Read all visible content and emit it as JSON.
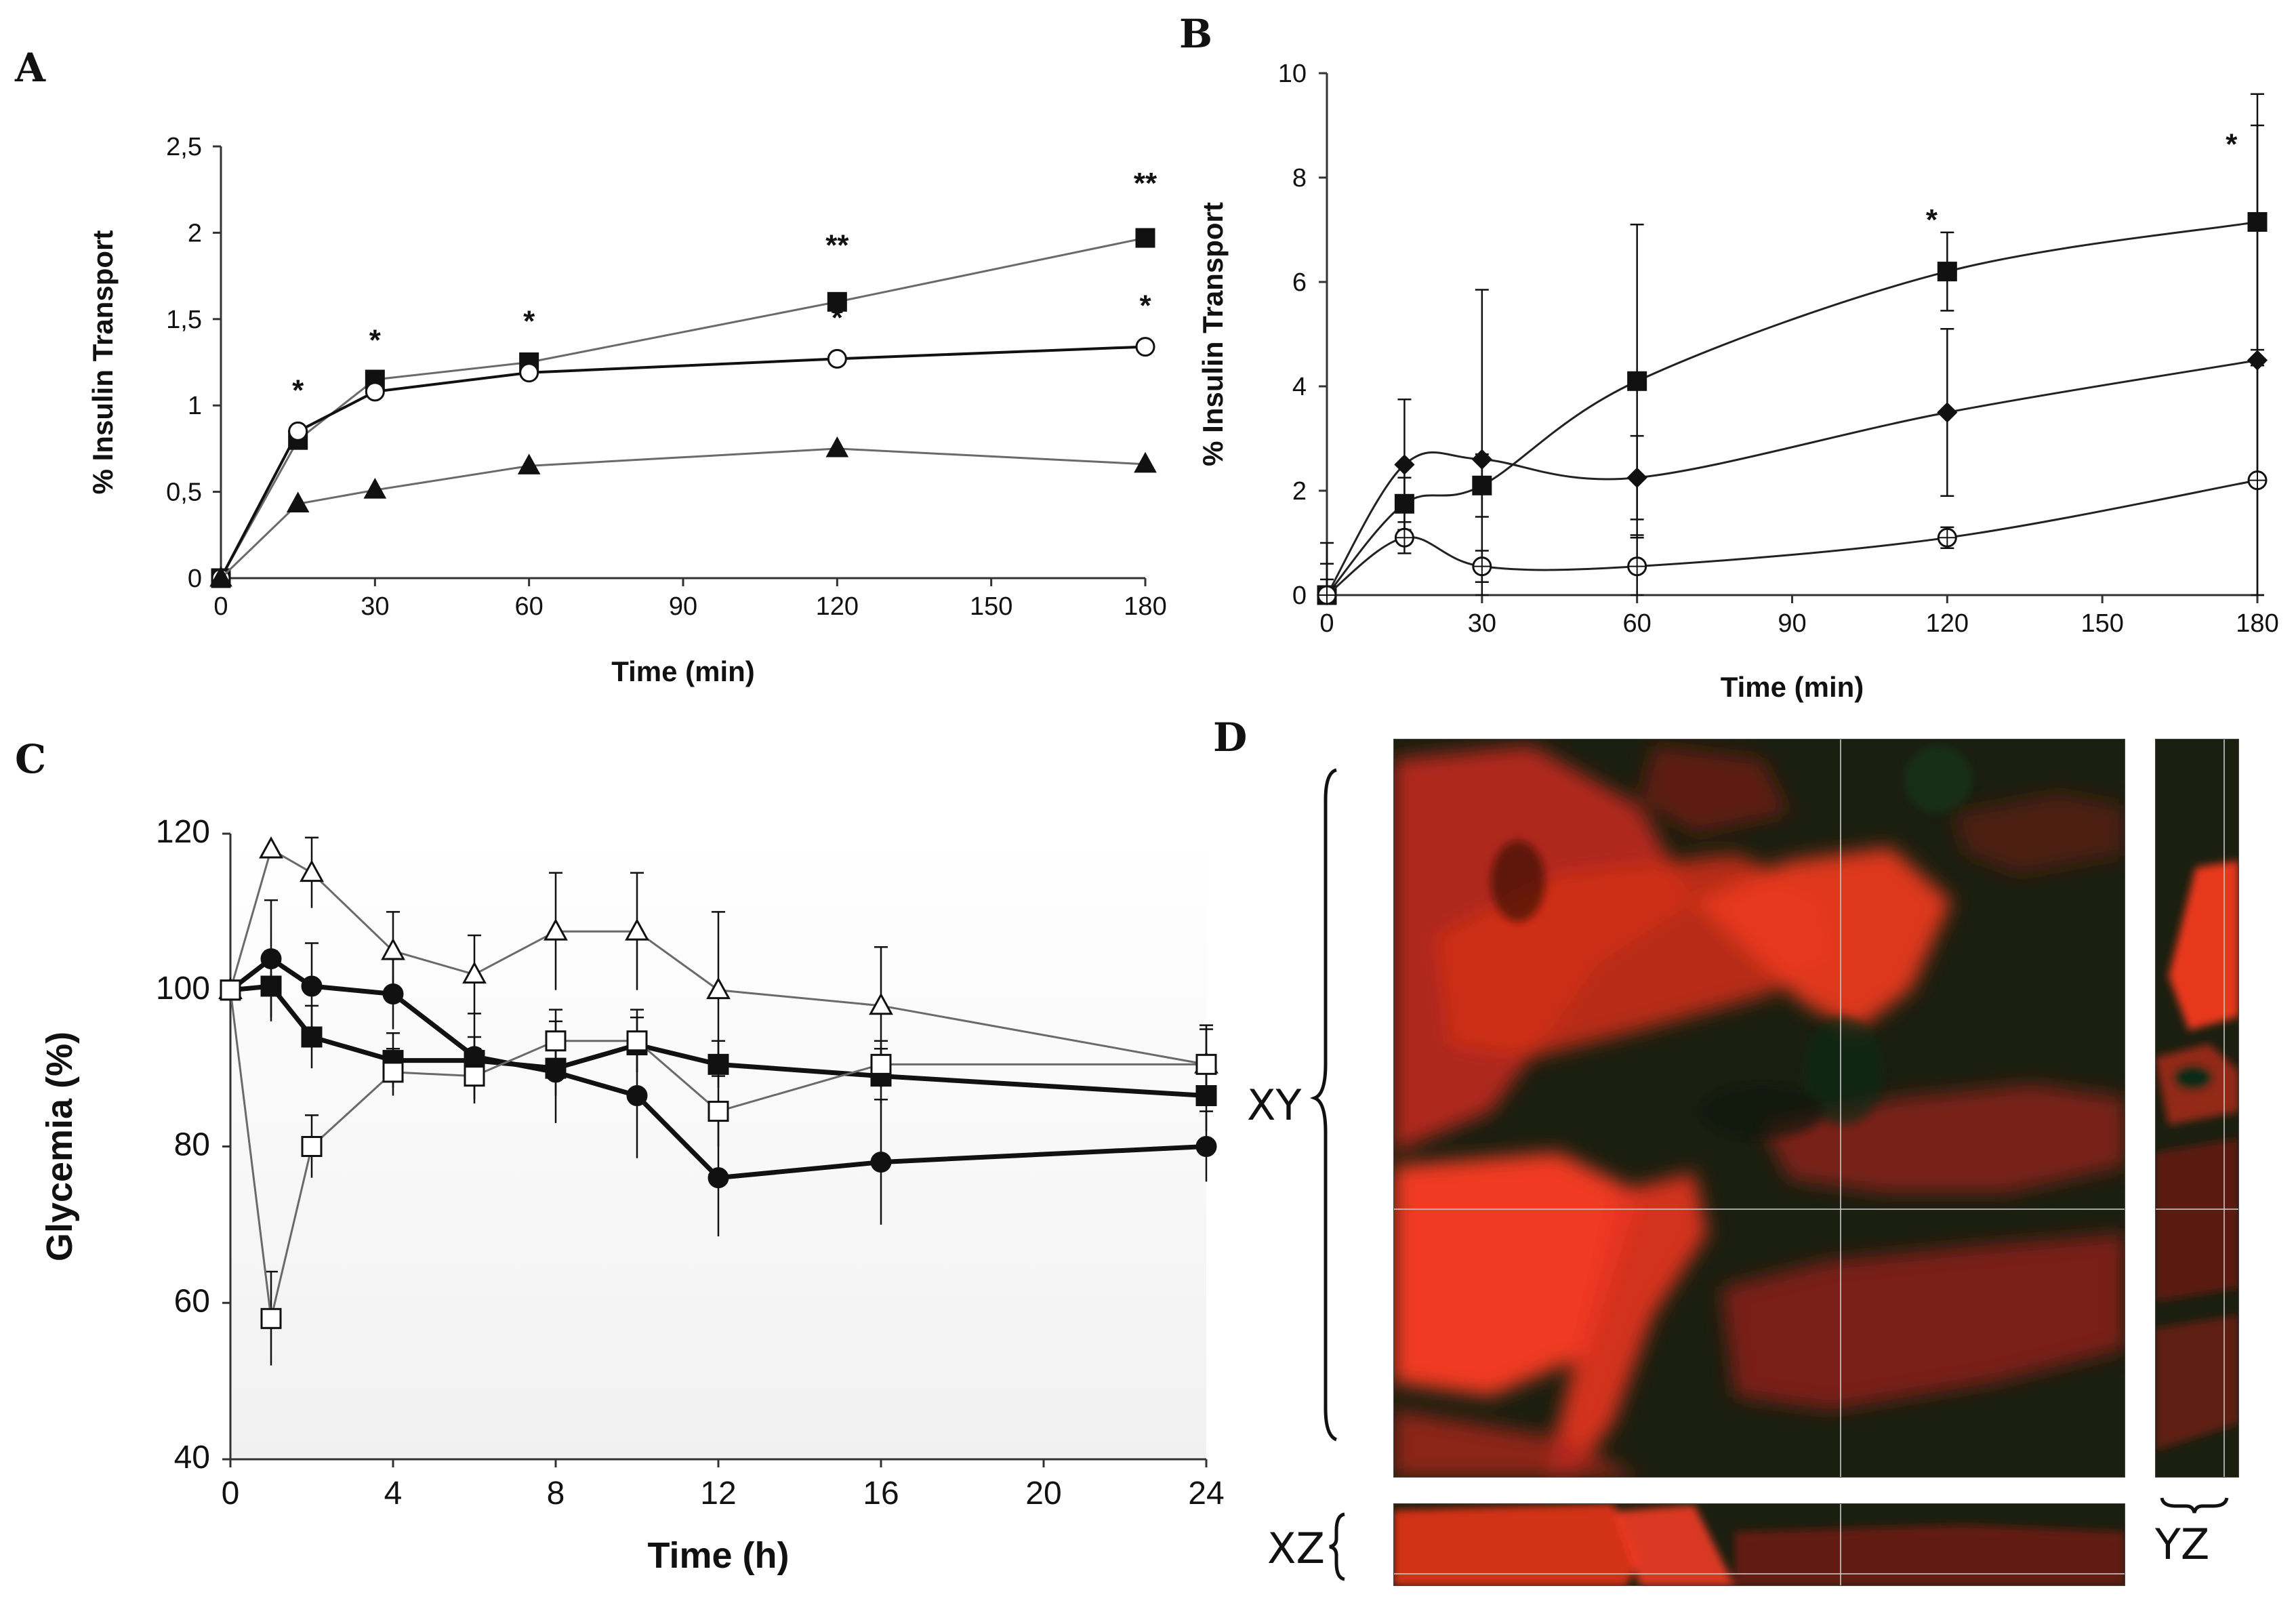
{
  "panels": {
    "a": "A",
    "b": "B",
    "c": "C",
    "d": "D"
  },
  "microscopy": {
    "xy": "XY",
    "xz": "XZ",
    "yz": "YZ"
  },
  "chart_data": [
    {
      "id": "A",
      "type": "line",
      "title": "",
      "xlabel": "Time (min)",
      "ylabel": "% Insulin Transport",
      "xlim": [
        0,
        180
      ],
      "ylim": [
        0,
        2.5
      ],
      "xticks": [
        0,
        30,
        60,
        90,
        120,
        150,
        180
      ],
      "yticks": [
        0,
        0.5,
        1,
        1.5,
        2,
        2.5
      ],
      "ytick_labels": [
        "0",
        "0,5",
        "1",
        "1,5",
        "2",
        "2,5"
      ],
      "series": [
        {
          "name": "filled squares",
          "marker": "square-filled",
          "x": [
            0,
            15,
            30,
            60,
            120,
            180
          ],
          "values": [
            0,
            0.8,
            1.15,
            1.25,
            1.6,
            1.97
          ]
        },
        {
          "name": "open circles",
          "marker": "circle-open",
          "x": [
            0,
            15,
            30,
            60,
            120,
            180
          ],
          "values": [
            0,
            0.85,
            1.08,
            1.19,
            1.27,
            1.34
          ]
        },
        {
          "name": "filled triangles",
          "marker": "triangle-filled",
          "x": [
            0,
            15,
            30,
            60,
            120,
            180
          ],
          "values": [
            0,
            0.43,
            0.51,
            0.65,
            0.75,
            0.66
          ]
        }
      ],
      "annotations": [
        {
          "text": "*",
          "x": 15,
          "y": 1.03
        },
        {
          "text": "*",
          "x": 30,
          "y": 1.32
        },
        {
          "text": "*",
          "x": 60,
          "y": 1.43
        },
        {
          "text": "**",
          "x": 120,
          "y": 1.87
        },
        {
          "text": "*",
          "x": 120,
          "y": 1.45
        },
        {
          "text": "**",
          "x": 180,
          "y": 2.23
        },
        {
          "text": "*",
          "x": 180,
          "y": 1.52
        }
      ]
    },
    {
      "id": "B",
      "type": "line",
      "title": "",
      "xlabel": "Time (min)",
      "ylabel": "% Insulin Transport",
      "xlim": [
        0,
        180
      ],
      "ylim": [
        0,
        10
      ],
      "xticks": [
        0,
        30,
        60,
        90,
        120,
        150,
        180
      ],
      "yticks": [
        0,
        2,
        4,
        6,
        8,
        10
      ],
      "ytick_labels": [
        "0",
        "2",
        "4",
        "6",
        "8",
        "10"
      ],
      "series": [
        {
          "name": "filled squares",
          "marker": "square-filled",
          "x": [
            0,
            15,
            30,
            60,
            120,
            180
          ],
          "values": [
            0,
            1.75,
            2.1,
            4.1,
            6.2,
            7.15
          ],
          "err": [
            1.0,
            0.5,
            0.6,
            3.0,
            0.75,
            2.45
          ]
        },
        {
          "name": "filled diamonds",
          "marker": "diamond-filled",
          "x": [
            0,
            15,
            30,
            60,
            120,
            180
          ],
          "values": [
            0,
            2.5,
            2.6,
            2.25,
            3.5,
            4.5
          ],
          "err": [
            0.6,
            1.25,
            3.25,
            0.8,
            1.6,
            4.5
          ]
        },
        {
          "name": "open circles",
          "marker": "circle-crossed",
          "x": [
            0,
            15,
            30,
            60,
            120,
            180
          ],
          "values": [
            0,
            1.1,
            0.55,
            0.55,
            1.1,
            2.2
          ],
          "err": [
            0.3,
            0.3,
            0.3,
            0.6,
            0.2,
            2.2
          ]
        }
      ],
      "annotations": [
        {
          "text": "*",
          "x": 117,
          "y": 7.0
        },
        {
          "text": "*",
          "x": 175,
          "y": 8.45
        }
      ]
    },
    {
      "id": "C",
      "type": "line",
      "title": "",
      "xlabel": "Time (h)",
      "ylabel": "Glycemia (%)",
      "xlim": [
        0,
        24
      ],
      "ylim": [
        40,
        120
      ],
      "xticks": [
        0,
        4,
        8,
        12,
        16,
        20,
        24
      ],
      "yticks": [
        40,
        60,
        80,
        100,
        120
      ],
      "ytick_labels": [
        "40",
        "60",
        "80",
        "100",
        "120"
      ],
      "series": [
        {
          "name": "open triangles",
          "marker": "triangle-open",
          "x": [
            0,
            1,
            2,
            4,
            6,
            8,
            10,
            12,
            16,
            24
          ],
          "values": [
            100,
            118,
            115,
            105,
            102,
            107.5,
            107.5,
            100,
            98,
            90.5
          ],
          "err": [
            0,
            0,
            4.5,
            5,
            5,
            7.5,
            7.5,
            10,
            7.5,
            5
          ]
        },
        {
          "name": "filled circles",
          "marker": "circle-filled",
          "x": [
            0,
            1,
            2,
            4,
            6,
            8,
            10,
            12,
            16,
            24
          ],
          "values": [
            100,
            104,
            100.5,
            99.5,
            91.5,
            89.5,
            86.5,
            76,
            78,
            80
          ],
          "err": [
            0,
            7.5,
            5.5,
            4.5,
            5.5,
            6.5,
            8,
            7.5,
            8,
            4.5
          ]
        },
        {
          "name": "filled squares",
          "marker": "square-filled",
          "x": [
            0,
            1,
            2,
            4,
            6,
            8,
            10,
            12,
            16,
            24
          ],
          "values": [
            100,
            100.5,
            94,
            91,
            91,
            90,
            93,
            90.5,
            89,
            86.5
          ],
          "err": [
            0,
            4.5,
            4,
            3.5,
            3,
            3.5,
            3.5,
            3,
            3.5,
            4.5
          ]
        },
        {
          "name": "open squares",
          "marker": "square-open",
          "x": [
            0,
            1,
            2,
            4,
            6,
            8,
            10,
            12,
            16,
            24
          ],
          "values": [
            100,
            58,
            80,
            89.5,
            89,
            93.5,
            93.5,
            84.5,
            90.5,
            90.5
          ],
          "err": [
            0,
            6,
            4,
            3,
            3.5,
            4,
            4,
            4.5,
            3,
            4.5
          ]
        }
      ]
    }
  ]
}
